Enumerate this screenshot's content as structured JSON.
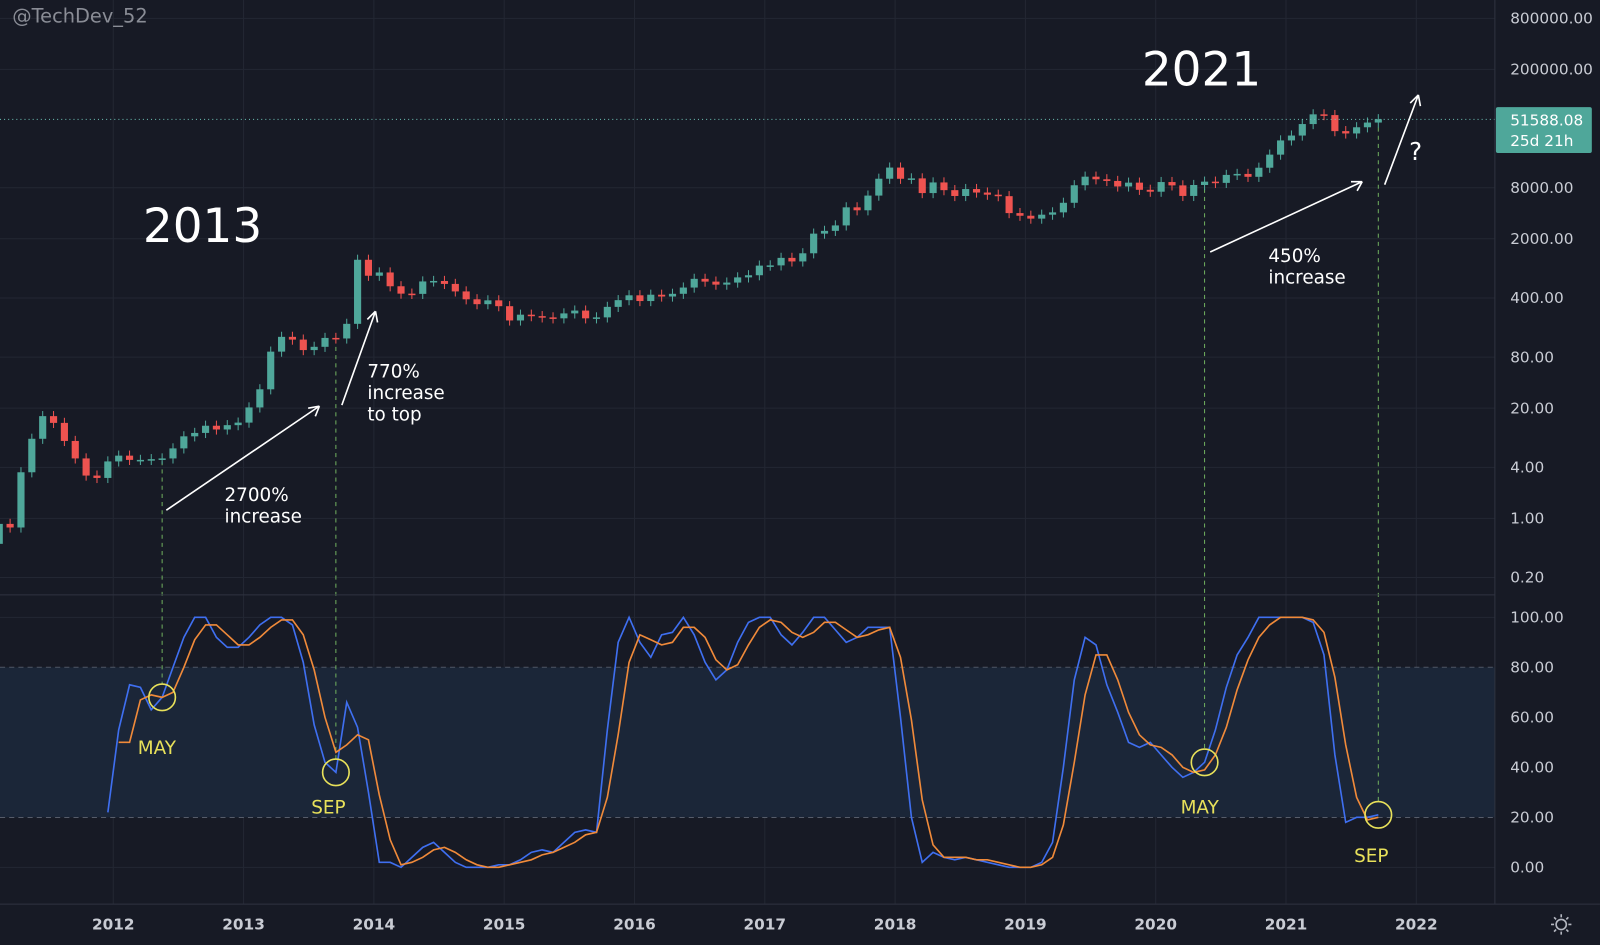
{
  "watermark": "@TechDev_52",
  "price_label": {
    "value": "51588.08",
    "countdown": "25d 21h"
  },
  "colors": {
    "background": "#171a25",
    "up": "#4fa79a",
    "down": "#ef5350",
    "k_line": "#3f6ff0",
    "d_line": "#f08a3a",
    "highlight": "#e8e15a",
    "band": "#1b2638",
    "guide": "#6fae5e"
  },
  "annotations": {
    "year_2013": "2013",
    "year_2021": "2021",
    "note_2700": [
      "2700%",
      "increase"
    ],
    "note_770": [
      "770%",
      "increase",
      "to top"
    ],
    "note_450": [
      "450%",
      "increase"
    ],
    "question": "?",
    "month_labels": [
      "MAY",
      "SEP",
      "MAY",
      "SEP"
    ]
  },
  "icons": {
    "settings": "gear-icon"
  },
  "chart_data": [
    {
      "type": "candlestick",
      "interval": "monthly",
      "start": "2011-02",
      "scale": "log",
      "first_open": 0.5,
      "close": [
        0.86,
        0.78,
        3.5,
        8.7,
        16.1,
        13.4,
        8.2,
        5.1,
        3.2,
        3.0,
        4.7,
        5.5,
        4.9,
        4.9,
        5.0,
        5.1,
        6.7,
        9.3,
        10.2,
        12.4,
        11.2,
        12.6,
        13.5,
        20.4,
        33.4,
        93,
        139,
        129,
        97,
        106,
        135,
        133,
        198,
        1130,
        732,
        800,
        550,
        450,
        447,
        627,
        635,
        586,
        478,
        386,
        338,
        375,
        320,
        217,
        254,
        244,
        236,
        230,
        263,
        284,
        230,
        236,
        314,
        377,
        430,
        368,
        437,
        416,
        448,
        531,
        673,
        624,
        575,
        608,
        700,
        742,
        964,
        970,
        1190,
        1080,
        1348,
        2300,
        2480,
        2875,
        4700,
        4340,
        6470,
        10230,
        13860,
        10220,
        10330,
        6930,
        9250,
        7500,
        6400,
        7730,
        7030,
        6630,
        6370,
        4020,
        3740,
        3460,
        3850,
        4100,
        5320,
        8570,
        10820,
        10080,
        9630,
        8290,
        9200,
        7570,
        7190,
        9350,
        8540,
        6410,
        8630,
        9450,
        9140,
        11350,
        11660,
        10780,
        13800,
        19700,
        28990,
        33100,
        45240,
        58920,
        57750,
        37330,
        35040,
        41460,
        47130,
        51588.08
      ],
      "y_ticks": [
        "800000.00",
        "200000.00",
        "8000.00",
        "2000.00",
        "400.00",
        "80.00",
        "20.00",
        "4.00",
        "1.00",
        "0.20"
      ],
      "x_ticks": [
        "2012",
        "2013",
        "2014",
        "2015",
        "2016",
        "2017",
        "2018",
        "2019",
        "2020",
        "2021",
        "2022"
      ]
    },
    {
      "type": "line",
      "interval": "monthly",
      "ylim": [
        0,
        100
      ],
      "bands": [
        20,
        80
      ],
      "y_ticks": [
        "100.00",
        "80.00",
        "60.00",
        "40.00",
        "20.00",
        "0.00"
      ],
      "series": [
        {
          "start": "2011-12",
          "color": "#3f6ff0",
          "values": [
            22,
            55,
            73,
            72,
            63,
            68,
            80,
            92,
            100,
            100,
            92,
            88,
            88,
            92,
            97,
            100,
            100,
            97,
            82,
            57,
            42,
            38,
            66,
            56,
            30,
            2,
            2,
            0,
            4,
            8,
            10,
            6,
            2,
            0,
            0,
            0,
            1,
            1,
            3,
            6,
            7,
            6,
            10,
            14,
            15,
            14,
            55,
            90,
            100,
            90,
            84,
            93,
            94,
            100,
            93,
            82,
            75,
            79,
            90,
            98,
            100,
            100,
            93,
            89,
            94,
            100,
            100,
            95,
            90,
            92,
            96,
            96,
            96,
            60,
            20,
            2,
            6,
            4,
            3,
            4,
            3,
            2,
            1,
            0,
            0,
            0,
            2,
            10,
            40,
            75,
            92,
            89,
            73,
            62,
            50,
            48,
            50,
            45,
            40,
            36,
            38,
            42,
            55,
            72,
            85,
            92,
            100,
            100,
            100,
            100,
            100,
            98,
            85,
            45,
            18,
            20,
            20,
            21
          ]
        },
        {
          "start": "2012-01",
          "color": "#f08a3a",
          "values": [
            50,
            50,
            67,
            69,
            68,
            70,
            80,
            91,
            97,
            97,
            93,
            89,
            89,
            92,
            96,
            99,
            99,
            93,
            79,
            60,
            46,
            49,
            53,
            51,
            29,
            11,
            1,
            2,
            4,
            7,
            8,
            6,
            3,
            1,
            0,
            0,
            1,
            2,
            3,
            5,
            6,
            8,
            10,
            13,
            14,
            28,
            53,
            82,
            93,
            91,
            89,
            90,
            96,
            96,
            92,
            83,
            79,
            81,
            89,
            96,
            99,
            98,
            94,
            92,
            94,
            98,
            98,
            95,
            92,
            93,
            95,
            96,
            84,
            59,
            27,
            9,
            4,
            4,
            4,
            3,
            3,
            2,
            1,
            0,
            0,
            1,
            4,
            17,
            42,
            69,
            85,
            85,
            75,
            62,
            53,
            49,
            48,
            45,
            40,
            38,
            39,
            45,
            56,
            71,
            83,
            92,
            97,
            100,
            100,
            100,
            99,
            94,
            76,
            49,
            28,
            19,
            20
          ]
        }
      ],
      "highlights": [
        "2012-05",
        "2013-09",
        "2020-05",
        "2021-09"
      ]
    }
  ]
}
